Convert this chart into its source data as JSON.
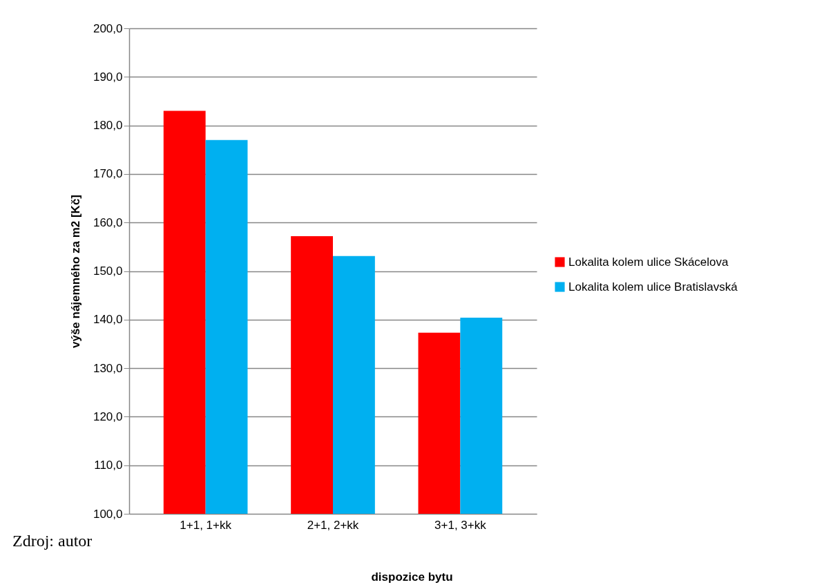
{
  "chart_data": {
    "type": "bar",
    "xlabel": "dispozice bytu",
    "ylabel": "výše nájemného za m2 [Kč]",
    "categories": [
      "1+1, 1+kk",
      "2+1, 2+kk",
      "3+1, 3+kk"
    ],
    "series": [
      {
        "name": "Lokalita kolem ulice Skácelova",
        "color": "#ff0000",
        "values": [
          183.0,
          157.2,
          137.3
        ]
      },
      {
        "name": "Lokalita kolem ulice Bratislavská",
        "color": "#00b0f0",
        "values": [
          177.0,
          153.1,
          140.4
        ]
      }
    ],
    "ylim": [
      100,
      200
    ],
    "yticks": [
      {
        "value": 100,
        "label": "100,0"
      },
      {
        "value": 110,
        "label": "110,0"
      },
      {
        "value": 120,
        "label": "120,0"
      },
      {
        "value": 130,
        "label": "130,0"
      },
      {
        "value": 140,
        "label": "140,0"
      },
      {
        "value": 150,
        "label": "150,0"
      },
      {
        "value": 160,
        "label": "160,0"
      },
      {
        "value": 170,
        "label": "170,0"
      },
      {
        "value": 180,
        "label": "180,0"
      },
      {
        "value": 190,
        "label": "190,0"
      },
      {
        "value": 200,
        "label": "200,0"
      }
    ],
    "grid": "y",
    "legend": "right",
    "annotations": [
      "Zdroj: autor"
    ]
  }
}
